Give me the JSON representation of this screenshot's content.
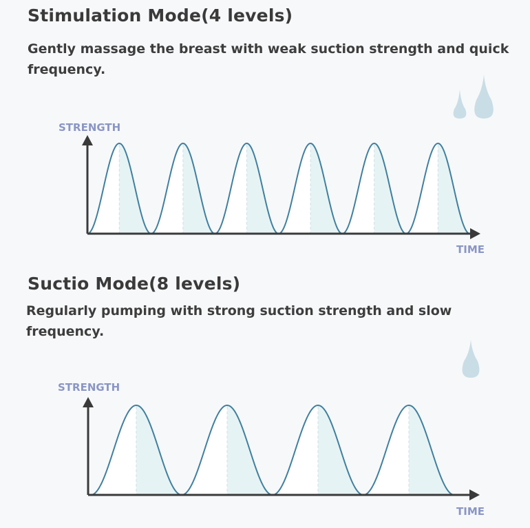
{
  "sections": [
    {
      "title": "Stimulation Mode(4 levels)",
      "description": "Gently massage the breast with weak suction strength and quick frequency.",
      "y_axis_label": "STRENGTH",
      "x_axis_label": "TIME",
      "cycles": 6,
      "drops_icon": "two-water-drops-icon"
    },
    {
      "title": "Suctio Mode(8 levels)",
      "description": "Regularly pumping with strong suction strength and slow frequency.",
      "y_axis_label": "STRENGTH",
      "x_axis_label": "TIME",
      "cycles": 4,
      "drops_icon": "water-drop-icon"
    }
  ],
  "colors": {
    "curve": "#3f7f9f",
    "fill": "#e6f3f4",
    "axis": "#3a3a3a",
    "label": "#8a96c4",
    "drop": "#c9dde6"
  }
}
